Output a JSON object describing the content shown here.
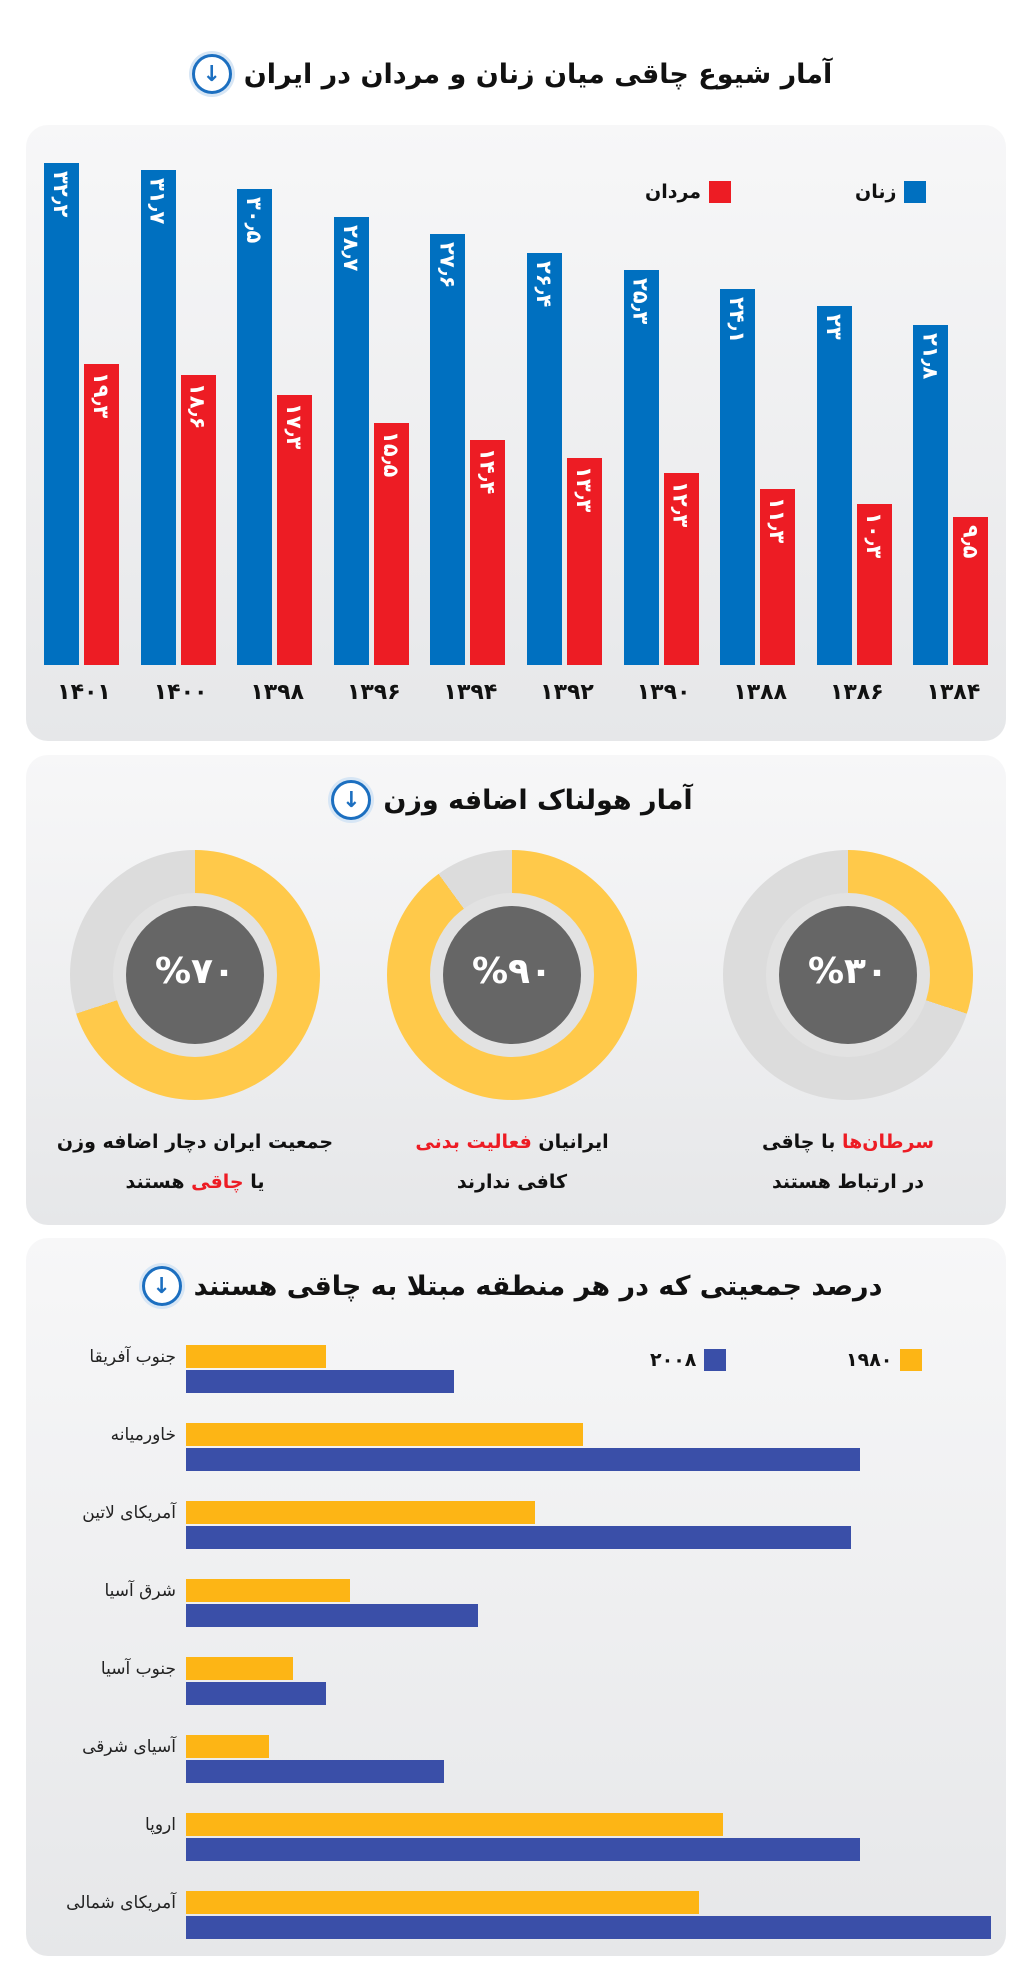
{
  "sections": {
    "s1_title": "آمار شیوع چاقی میان زنان و مردان در ایران",
    "s2_title": "آمار هولناک اضافه وزن",
    "s3_title": "درصد جمعیتی که در هر منطقه مبتلا به چاقی هستند"
  },
  "colors": {
    "women": "#0070c0",
    "men": "#ed1c24",
    "y1980": "#fdb515",
    "y2008": "#3a4fa8",
    "ring": "#ffc94a",
    "ring_bg": "#dcdcdc",
    "center": "#666666"
  },
  "chart_data": [
    {
      "type": "bar",
      "categories": [
        "۱۴۰۱",
        "۱۴۰۰",
        "۱۳۹۸",
        "۱۳۹۶",
        "۱۳۹۴",
        "۱۳۹۲",
        "۱۳۹۰",
        "۱۳۸۸",
        "۱۳۸۶",
        "۱۳۸۴"
      ],
      "series": [
        {
          "name": "زنان",
          "values": [
            32.2,
            31.7,
            30.5,
            28.7,
            27.6,
            26.4,
            25.3,
            24.1,
            23,
            21.8
          ],
          "labels": [
            "۳۲٫۲",
            "۳۱٫۷",
            "۳۰٫۵",
            "۲۸٫۷",
            "۲۷٫۶",
            "۲۶٫۴",
            "۲۵٫۳",
            "۲۴٫۱",
            "۲۳",
            "۲۱٫۸"
          ]
        },
        {
          "name": "مردان",
          "values": [
            19.3,
            18.6,
            17.3,
            15.5,
            14.4,
            13.3,
            12.3,
            11.3,
            10.3,
            9.5
          ],
          "labels": [
            "۱۹٫۳",
            "۱۸٫۶",
            "۱۷٫۳",
            "۱۵٫۵",
            "۱۴٫۴",
            "۱۳٫۳",
            "۱۲٫۳",
            "۱۱٫۳",
            "۱۰٫۳",
            "۹٫۵"
          ]
        }
      ],
      "legend": "top-right",
      "grid": false
    },
    {
      "type": "pie",
      "donuts": [
        {
          "value": 70,
          "label": "%۷۰",
          "text1_a": "جمعیت ایران دچار اضافه وزن",
          "text2_red": "چاقی",
          "text2_pre": "یا ",
          "text2_post": " هستند"
        },
        {
          "value": 90,
          "label": "%۹۰",
          "text1_pre": "ایرانیان ",
          "text1_red": "فعالیت بدنی",
          "text2": "کافی ندارند"
        },
        {
          "value": 30,
          "label": "%۳۰",
          "text1_red": "سرطان‌ها",
          "text1_post": " با چاقی",
          "text2": "در ارتباط هستند"
        }
      ]
    },
    {
      "type": "bar",
      "orientation": "horizontal",
      "categories": [
        "جنوب آفریقا",
        "خاورمیانه",
        "آمریکای لاتین",
        "شرق آسیا",
        "جنوب آسیا",
        "آسیای شرقی",
        "اروپا",
        "آمریکای شمالی"
      ],
      "series": [
        {
          "name": "۱۹۸۰",
          "values": [
            5.2,
            14.8,
            13.0,
            6.1,
            4.0,
            3.1,
            20.0,
            19.1
          ]
        },
        {
          "name": "۲۰۰۸",
          "values": [
            10.0,
            25.1,
            24.8,
            10.9,
            5.2,
            9.6,
            25.1,
            30.0
          ]
        }
      ],
      "xlim": [
        0,
        30
      ],
      "legend": "top-right",
      "grid": false
    }
  ]
}
